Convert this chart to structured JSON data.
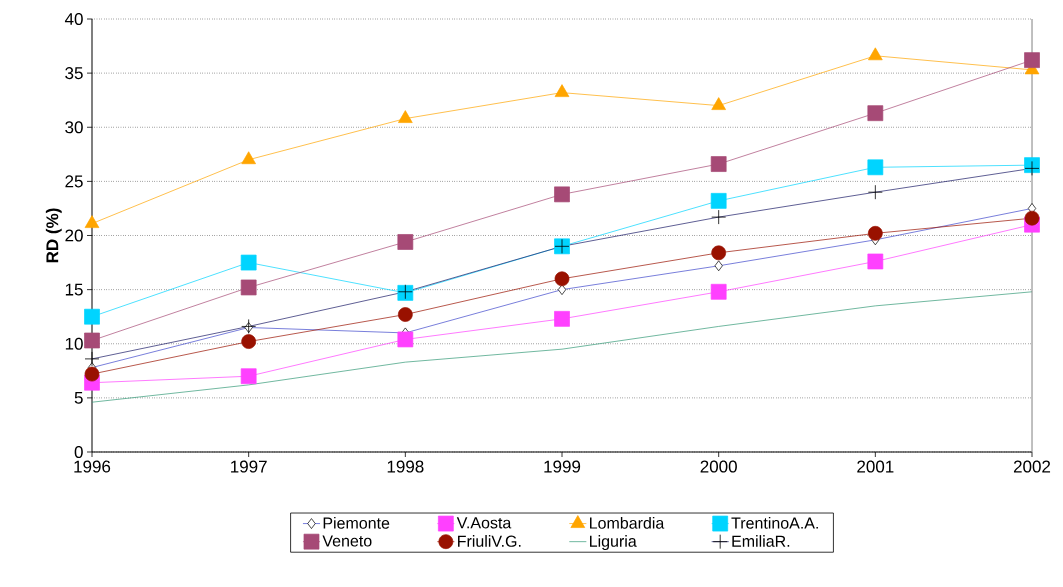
{
  "chart_data": {
    "type": "line",
    "ylabel": "RD (%)",
    "x": [
      1996,
      1997,
      1998,
      1999,
      2000,
      2001,
      2002
    ],
    "xlim": [
      1996,
      2002
    ],
    "xticks": [
      1996,
      1997,
      1998,
      1999,
      2000,
      2001,
      2002
    ],
    "ylim": [
      0,
      40
    ],
    "yticks": [
      0,
      5,
      10,
      15,
      20,
      25,
      30,
      35,
      40
    ],
    "grid": "y",
    "legend": "bottom",
    "series": [
      {
        "name": "Piemonte",
        "color": "#3f48cc",
        "marker": "diamond",
        "values": [
          7.8,
          11.5,
          11.0,
          15.0,
          17.2,
          19.6,
          22.5
        ]
      },
      {
        "name": "V.Aosta",
        "color": "#ff40ff",
        "marker": "square",
        "values": [
          6.4,
          7.0,
          10.4,
          12.3,
          14.8,
          17.6,
          21.0
        ]
      },
      {
        "name": "Lombardia",
        "color": "#ffa500",
        "marker": "triangle",
        "values": [
          21.1,
          27.0,
          30.8,
          33.2,
          32.0,
          36.6,
          35.3
        ]
      },
      {
        "name": "TrentinoA.A.",
        "color": "#00d4ff",
        "marker": "square",
        "values": [
          12.5,
          17.5,
          14.7,
          19.0,
          23.2,
          26.3,
          26.5
        ]
      },
      {
        "name": "Veneto",
        "color": "#a64a76",
        "marker": "square",
        "values": [
          10.3,
          15.2,
          19.4,
          23.8,
          26.6,
          31.3,
          36.2
        ]
      },
      {
        "name": "FriuliV.G.",
        "color": "#991100",
        "marker": "circle",
        "values": [
          7.2,
          10.2,
          12.7,
          16.0,
          18.4,
          20.2,
          21.6
        ]
      },
      {
        "name": "Liguria",
        "color": "#339977",
        "marker": "none",
        "values": [
          4.6,
          6.2,
          8.3,
          9.5,
          11.6,
          13.5,
          14.8
        ]
      },
      {
        "name": "EmiliaR.",
        "color": "#1a1a66",
        "marker": "cross",
        "values": [
          8.6,
          11.6,
          14.8,
          19.0,
          21.7,
          24.0,
          26.2
        ]
      }
    ]
  }
}
